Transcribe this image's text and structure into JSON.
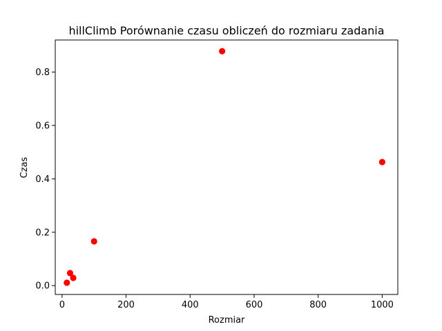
{
  "chart_data": {
    "type": "scatter",
    "title": "hillClimb Porównanie czasu obliczeń do rozmiaru zadania",
    "xlabel": "Rozmiar",
    "ylabel": "Czas",
    "xlim": [
      -21.25,
      1048.75
    ],
    "ylim": [
      -0.033,
      0.92
    ],
    "x_ticks": [
      0,
      200,
      400,
      600,
      800,
      1000
    ],
    "x_tick_labels": [
      "0",
      "200",
      "400",
      "600",
      "800",
      "1000"
    ],
    "y_ticks": [
      0.0,
      0.2,
      0.4,
      0.6,
      0.8
    ],
    "y_tick_labels": [
      "0.0",
      "0.2",
      "0.4",
      "0.6",
      "0.8"
    ],
    "grid": false,
    "series": [
      {
        "color": "#ff0000",
        "points": [
          {
            "x": 15,
            "y": 0.011
          },
          {
            "x": 25,
            "y": 0.047
          },
          {
            "x": 35,
            "y": 0.029
          },
          {
            "x": 100,
            "y": 0.166
          },
          {
            "x": 500,
            "y": 0.878
          },
          {
            "x": 1000,
            "y": 0.463
          }
        ]
      }
    ]
  }
}
